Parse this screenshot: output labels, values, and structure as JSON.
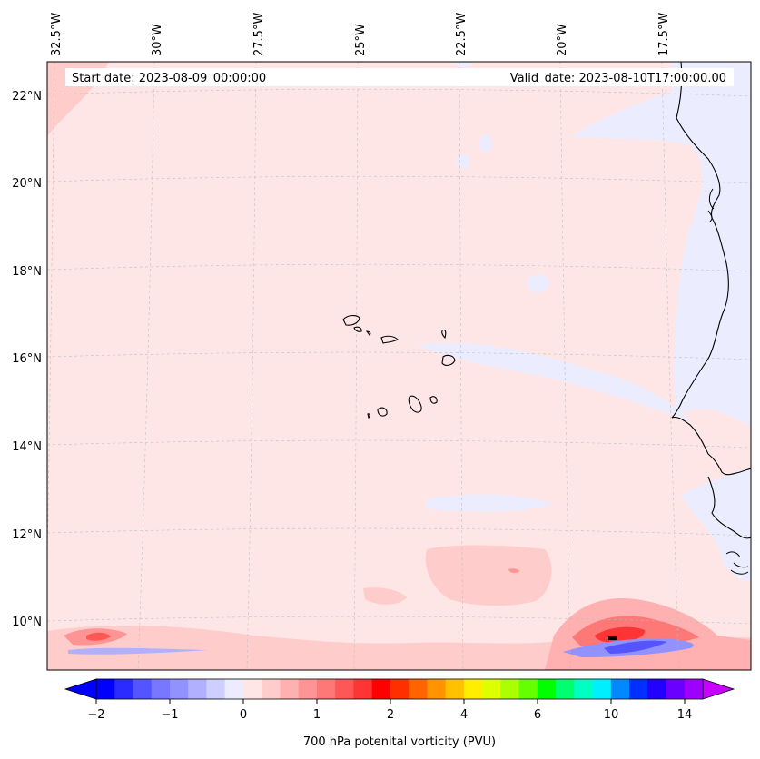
{
  "map": {
    "start_label": "Start date: 2023-08-09_00:00:00",
    "valid_label": "Valid_date: 2023-08-10T17:00:00.00",
    "lon_labels": [
      "32.5°W",
      "30°W",
      "27.5°W",
      "25°W",
      "22.5°W",
      "20°W",
      "17.5°W"
    ],
    "lat_labels": [
      "22°N",
      "20°N",
      "18°N",
      "16°N",
      "14°N",
      "12°N",
      "10°N"
    ],
    "field": "700 hPa potential vorticity",
    "region": "Cape Verde / West African coast"
  },
  "colorbar": {
    "label": "700 hPa potenital vorticity (PVU)",
    "ticks": [
      "−2",
      "−1",
      "0",
      "1",
      "2",
      "4",
      "6",
      "10",
      "14"
    ],
    "colors": [
      "#0000ff",
      "#2b2bff",
      "#5555ff",
      "#7777ff",
      "#9292ff",
      "#b0b0ff",
      "#cfcfff",
      "#ececff",
      "#ffe6e6",
      "#ffcccc",
      "#ffb0b0",
      "#ff9494",
      "#ff7878",
      "#ff5656",
      "#ff3535",
      "#ff0000",
      "#ff2f00",
      "#ff6400",
      "#ff9400",
      "#ffc000",
      "#ffee00",
      "#ddff00",
      "#aaff00",
      "#66ff00",
      "#00ff00",
      "#00ff6e",
      "#00ffc0",
      "#00efff",
      "#0088ff",
      "#0030ff",
      "#2200ff",
      "#6a00ff",
      "#9d00ff"
    ],
    "extend_low": "#0000ff",
    "extend_high": "#c800ff"
  }
}
